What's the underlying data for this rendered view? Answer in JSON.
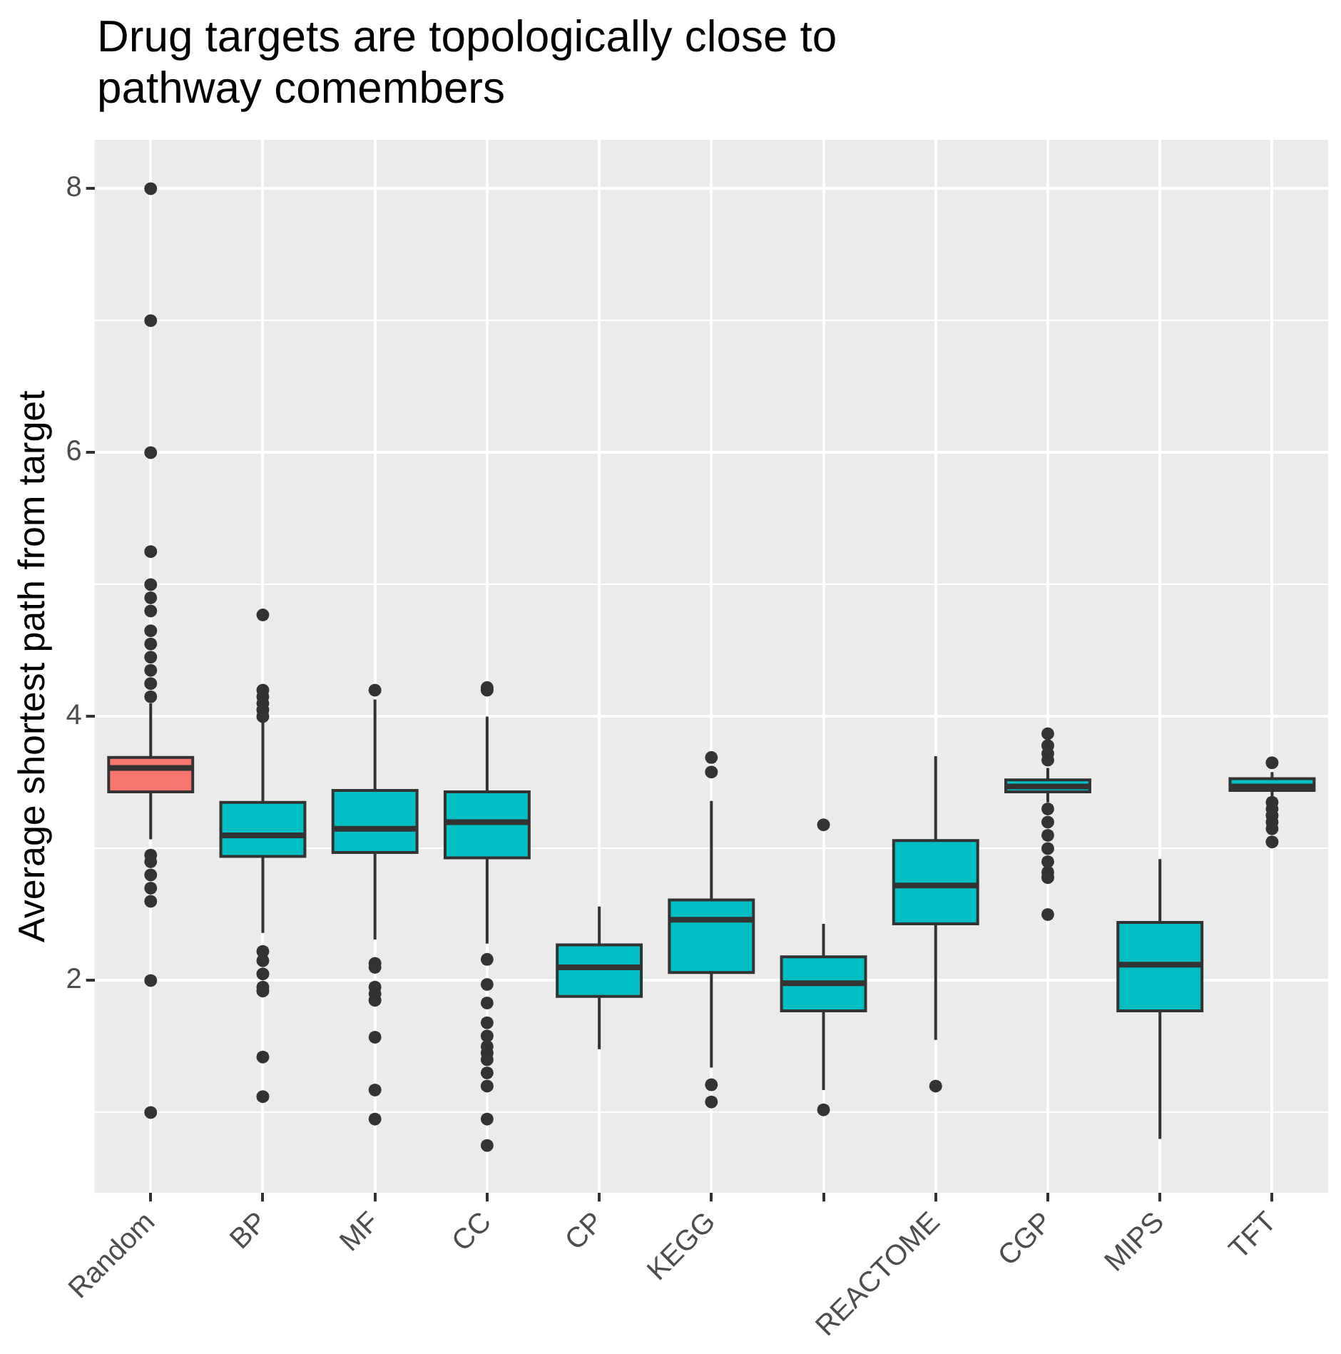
{
  "chart_data": {
    "type": "box",
    "title": "Drug targets are topologically close to pathway comembers",
    "ylabel": "Average shortest path from target",
    "categories": [
      "Random",
      "BP",
      "MF",
      "CC",
      "CP",
      "KEGG",
      null,
      "REACTOME",
      "CGP",
      "MIPS",
      "TFT"
    ],
    "colors": [
      "#f8766d",
      "#00bfc4",
      "#00bfc4",
      "#00bfc4",
      "#00bfc4",
      "#00bfc4",
      "#00bfc4",
      "#00bfc4",
      "#00bfc4",
      "#00bfc4",
      "#00bfc4"
    ],
    "boxes": [
      {
        "low": 3.07,
        "q1": 3.43,
        "median": 3.61,
        "q3": 3.69,
        "high": 4.1,
        "outliers": [
          8,
          7,
          6,
          5.25,
          5.0,
          4.9,
          4.8,
          4.65,
          4.55,
          4.45,
          4.35,
          4.25,
          4.15,
          2.95,
          2.9,
          2.8,
          2.7,
          2.6,
          2.0,
          1.0
        ]
      },
      {
        "low": 2.36,
        "q1": 2.94,
        "median": 3.1,
        "q3": 3.35,
        "high": 3.97,
        "outliers": [
          4.77,
          4.2,
          4.15,
          4.1,
          4.05,
          4.0,
          2.22,
          2.15,
          2.05,
          1.95,
          1.92,
          1.42,
          1.12
        ]
      },
      {
        "low": 2.31,
        "q1": 2.97,
        "median": 3.15,
        "q3": 3.44,
        "high": 4.13,
        "outliers": [
          4.2,
          2.13,
          2.1,
          1.95,
          1.9,
          1.85,
          1.57,
          1.17,
          0.95
        ]
      },
      {
        "low": 2.28,
        "q1": 2.93,
        "median": 3.2,
        "q3": 3.43,
        "high": 4.0,
        "outliers": [
          4.22,
          4.2,
          2.16,
          1.97,
          1.83,
          1.68,
          1.58,
          1.5,
          1.45,
          1.4,
          1.3,
          1.2,
          0.95,
          0.75
        ]
      },
      {
        "low": 1.48,
        "q1": 1.88,
        "median": 2.1,
        "q3": 2.27,
        "high": 2.56
      },
      {
        "low": 1.34,
        "q1": 2.06,
        "median": 2.46,
        "q3": 2.61,
        "high": 3.36,
        "outliers": [
          3.69,
          3.58,
          1.21,
          1.08
        ]
      },
      {
        "low": 1.17,
        "q1": 1.77,
        "median": 1.98,
        "q3": 2.18,
        "high": 2.43,
        "outliers": [
          3.18,
          1.02
        ]
      },
      {
        "low": 1.55,
        "q1": 2.43,
        "median": 2.72,
        "q3": 3.06,
        "high": 3.7,
        "outliers": [
          1.2
        ]
      },
      {
        "low": 3.35,
        "q1": 3.43,
        "median": 3.47,
        "q3": 3.52,
        "high": 3.61,
        "outliers": [
          3.87,
          3.78,
          3.72,
          3.67,
          3.3,
          3.2,
          3.1,
          3.0,
          2.9,
          2.82,
          2.78,
          2.5
        ]
      },
      {
        "low": 0.8,
        "q1": 1.77,
        "median": 2.12,
        "q3": 2.44,
        "high": 2.92
      },
      {
        "low": 3.39,
        "q1": 3.44,
        "median": 3.47,
        "q3": 3.53,
        "high": 3.58,
        "outliers": [
          3.65,
          3.35,
          3.3,
          3.25,
          3.2,
          3.15,
          3.05
        ]
      }
    ],
    "ylim": [
      0.39,
      8.37
    ],
    "yticks": [
      {
        "value": 1,
        "label": null
      },
      2,
      {
        "value": 3,
        "label": null
      },
      4,
      {
        "value": 5,
        "label": null
      },
      6,
      {
        "value": 7,
        "label": null
      },
      8
    ],
    "grid": true,
    "legend": false
  }
}
